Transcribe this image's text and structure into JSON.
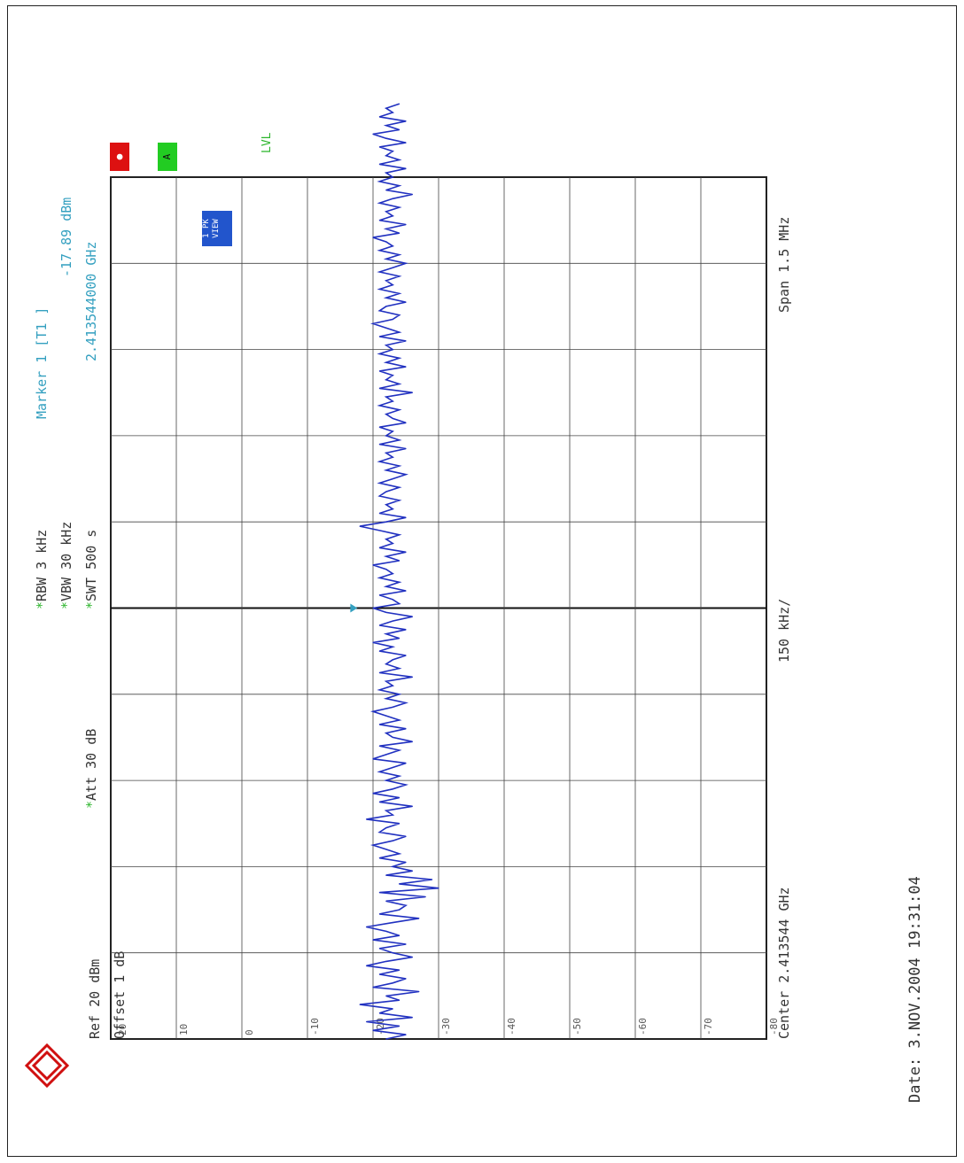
{
  "header": {
    "ref": "Ref  20 dBm",
    "att": "Att   30 dB",
    "offset": "Offset  1 dB",
    "rbw": "RBW 3 kHz",
    "vbw": "VBW 30 kHz",
    "swt": "SWT 500 s",
    "marker_title": "Marker 1 [T1 ]",
    "marker_level": "-17.89 dBm",
    "marker_freq": "2.413544000 GHz"
  },
  "side_labels": {
    "trace_mode": "1 PK\nVIEW",
    "lvl": "LVL",
    "box_a": "A",
    "box_red": "●",
    "ref_tick": "20"
  },
  "footer": {
    "center": "Center 2.413544 GHz",
    "per_div": "150 kHz/",
    "span": "Span 1.5 MHz",
    "date": "Date:  3.NOV.2004   19:31:04"
  },
  "colors": {
    "trace": "#2030c0",
    "grid": "#333333",
    "text": "#333333",
    "accent_green": "#2bb52b",
    "accent_cyan": "#34a0c0",
    "red_box": "#dd1111",
    "green_box": "#22cc22",
    "blue_box": "#2255cc"
  },
  "chart_data": {
    "type": "line",
    "xlabel": "",
    "ylabel": "",
    "ylim": [
      -80,
      20
    ],
    "xlim": [
      2.412794,
      2.414294
    ],
    "y_ticks": [
      10,
      0,
      -10,
      -20,
      -30,
      -40,
      -50,
      -60,
      -70,
      -80
    ],
    "grid": true,
    "marker": {
      "x": 2.413544,
      "y": -17.89
    },
    "series": [
      {
        "x_start": 2.412794,
        "x_step": 7.5e-06,
        "values": [
          -22,
          -25,
          -20,
          -24,
          -19,
          -26,
          -21,
          -23,
          -18,
          -24,
          -22,
          -27,
          -20,
          -23,
          -25,
          -21,
          -24,
          -19,
          -22,
          -26,
          -23,
          -21,
          -25,
          -20,
          -24,
          -22,
          -19,
          -23,
          -27,
          -21,
          -24,
          -25,
          -22,
          -28,
          -21,
          -30,
          -24,
          -29,
          -22,
          -26,
          -23,
          -25,
          -21,
          -24,
          -22,
          -20,
          -23,
          -25,
          -21,
          -22,
          -24,
          -19,
          -23,
          -22,
          -26,
          -21,
          -24,
          -20,
          -23,
          -25,
          -22,
          -24,
          -21,
          -23,
          -25,
          -20,
          -22,
          -24,
          -21,
          -26,
          -23,
          -22,
          -25,
          -21,
          -24,
          -22,
          -20,
          -23,
          -25,
          -22,
          -24,
          -21,
          -23,
          -22,
          -26,
          -21,
          -24,
          -22,
          -23,
          -25,
          -21,
          -23,
          -20,
          -24,
          -22,
          -25,
          -21,
          -23,
          -26,
          -22,
          -20,
          -24,
          -23,
          -21,
          -25,
          -22,
          -24,
          -21,
          -23,
          -22,
          -20,
          -24,
          -22,
          -25,
          -21,
          -23,
          -22,
          -24,
          -21,
          -18,
          -22,
          -25,
          -21,
          -23,
          -22,
          -24,
          -21,
          -22,
          -24,
          -21,
          -23,
          -25,
          -22,
          -24,
          -21,
          -23,
          -22,
          -25,
          -21,
          -24,
          -22,
          -23,
          -21,
          -25,
          -23,
          -22,
          -24,
          -21,
          -23,
          -22,
          -26,
          -21,
          -24,
          -22,
          -23,
          -21,
          -25,
          -22,
          -24,
          -21,
          -23,
          -22,
          -25,
          -21,
          -24,
          -22,
          -20,
          -23,
          -24,
          -21,
          -22,
          -25,
          -22,
          -24,
          -21,
          -23,
          -22,
          -24,
          -21,
          -23,
          -25,
          -22,
          -24,
          -21,
          -23,
          -22,
          -20,
          -24,
          -22,
          -25,
          -21,
          -23,
          -22,
          -24,
          -21,
          -23,
          -26,
          -22,
          -24,
          -21,
          -23,
          -22,
          -25,
          -21,
          -24,
          -22,
          -23,
          -21,
          -25,
          -22,
          -20,
          -24,
          -22,
          -25,
          -21,
          -23,
          -22,
          -24
        ]
      }
    ]
  }
}
